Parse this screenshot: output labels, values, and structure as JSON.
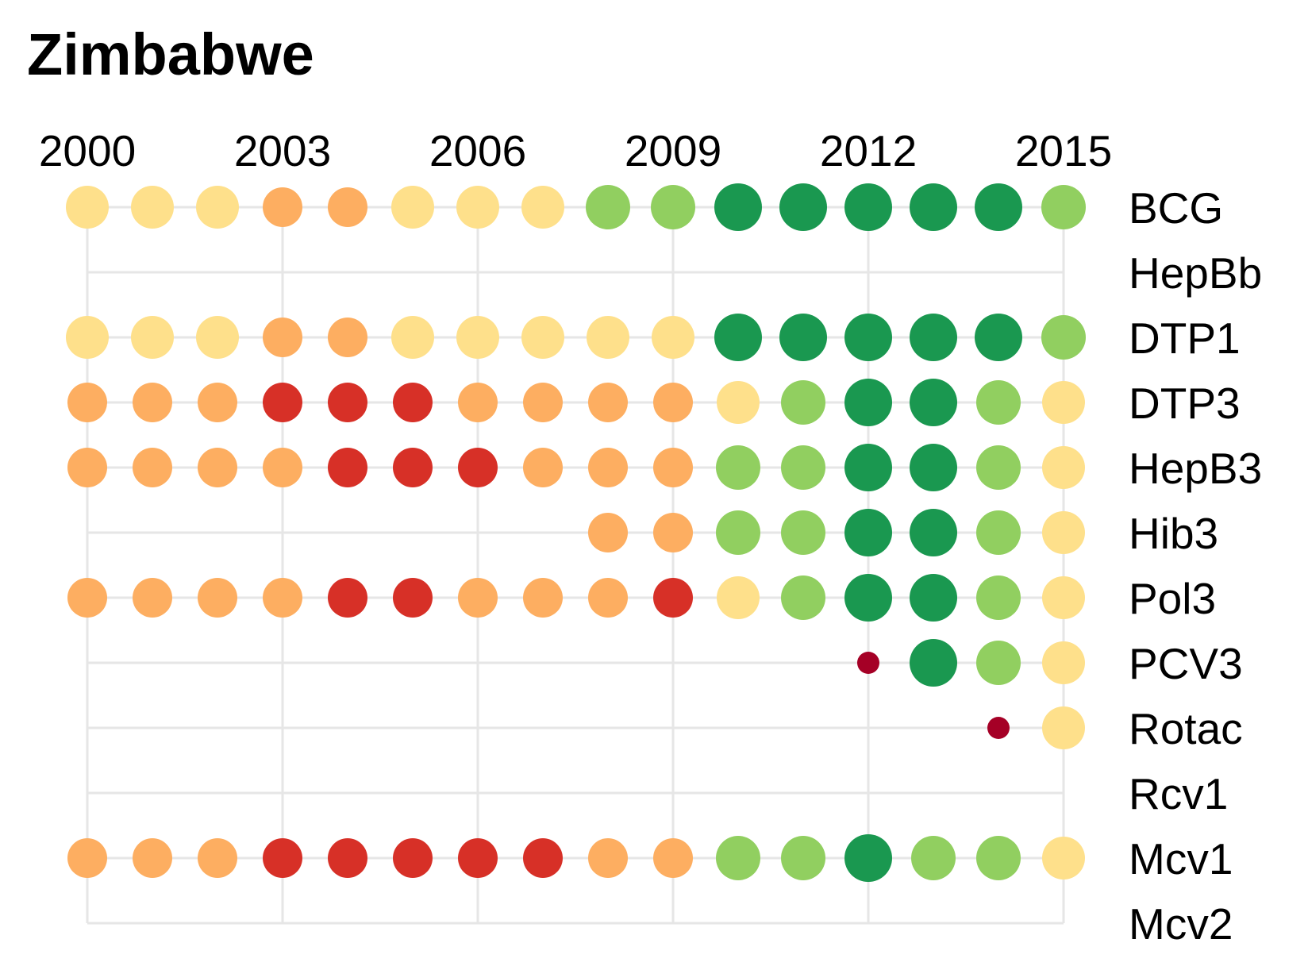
{
  "chart_data": {
    "type": "dot-matrix",
    "title": "Zimbabwe",
    "years": [
      2000,
      2001,
      2002,
      2003,
      2004,
      2005,
      2006,
      2007,
      2008,
      2009,
      2010,
      2011,
      2012,
      2013,
      2014,
      2015
    ],
    "x_tick_labels": [
      "2000",
      "2003",
      "2006",
      "2009",
      "2012",
      "2015"
    ],
    "x_ticks": [
      2000,
      2003,
      2006,
      2009,
      2012,
      2015
    ],
    "vaccines": [
      "BCG",
      "HepBb",
      "DTP1",
      "DTP3",
      "HepB3",
      "Hib3",
      "Pol3",
      "PCV3",
      "Rotac",
      "Rcv1",
      "Mcv1",
      "Mcv2"
    ],
    "category_colors": {
      "1": "#a50026",
      "2": "#d73027",
      "3": "#fdae61",
      "4": "#fee08b",
      "5": "#91cf60",
      "6": "#1a9850"
    },
    "rows": [
      {
        "vaccine": "BCG",
        "categories": [
          4,
          4,
          4,
          3,
          3,
          4,
          4,
          4,
          5,
          5,
          6,
          6,
          6,
          6,
          6,
          5
        ]
      },
      {
        "vaccine": "HepBb",
        "categories": [
          null,
          null,
          null,
          null,
          null,
          null,
          null,
          null,
          null,
          null,
          null,
          null,
          null,
          null,
          null,
          null
        ]
      },
      {
        "vaccine": "DTP1",
        "categories": [
          4,
          4,
          4,
          3,
          3,
          4,
          4,
          4,
          4,
          4,
          6,
          6,
          6,
          6,
          6,
          5
        ]
      },
      {
        "vaccine": "DTP3",
        "categories": [
          3,
          3,
          3,
          2,
          2,
          2,
          3,
          3,
          3,
          3,
          4,
          5,
          6,
          6,
          5,
          4
        ]
      },
      {
        "vaccine": "HepB3",
        "categories": [
          3,
          3,
          3,
          3,
          2,
          2,
          2,
          3,
          3,
          3,
          5,
          5,
          6,
          6,
          5,
          4
        ]
      },
      {
        "vaccine": "Hib3",
        "categories": [
          null,
          null,
          null,
          null,
          null,
          null,
          null,
          null,
          3,
          3,
          5,
          5,
          6,
          6,
          5,
          4
        ]
      },
      {
        "vaccine": "Pol3",
        "categories": [
          3,
          3,
          3,
          3,
          2,
          2,
          3,
          3,
          3,
          2,
          4,
          5,
          6,
          6,
          5,
          4
        ]
      },
      {
        "vaccine": "PCV3",
        "categories": [
          null,
          null,
          null,
          null,
          null,
          null,
          null,
          null,
          null,
          null,
          null,
          null,
          1,
          6,
          5,
          4
        ]
      },
      {
        "vaccine": "Rotac",
        "categories": [
          null,
          null,
          null,
          null,
          null,
          null,
          null,
          null,
          null,
          null,
          null,
          null,
          null,
          null,
          1,
          4
        ]
      },
      {
        "vaccine": "Rcv1",
        "categories": [
          null,
          null,
          null,
          null,
          null,
          null,
          null,
          null,
          null,
          null,
          null,
          null,
          null,
          null,
          null,
          null
        ]
      },
      {
        "vaccine": "Mcv1",
        "categories": [
          3,
          3,
          3,
          2,
          2,
          2,
          2,
          2,
          3,
          3,
          5,
          5,
          6,
          5,
          5,
          4
        ]
      },
      {
        "vaccine": "Mcv2",
        "categories": [
          null,
          null,
          null,
          null,
          null,
          null,
          null,
          null,
          null,
          null,
          null,
          null,
          null,
          null,
          null,
          null
        ]
      }
    ],
    "size_notes": "dot size grows with category; category 1 in 2012 PCV3 is the smallest",
    "grid": true,
    "legend": "none"
  }
}
